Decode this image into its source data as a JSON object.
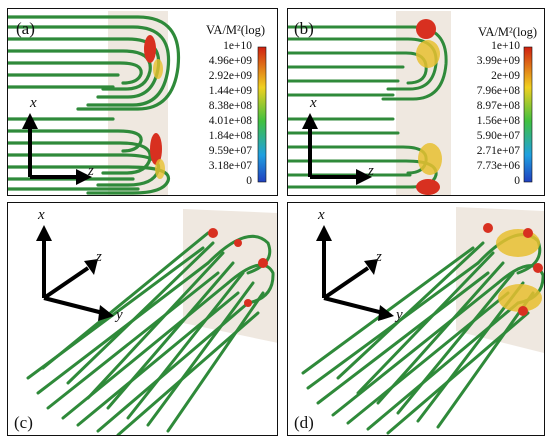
{
  "panels": {
    "a": {
      "label": "(a)"
    },
    "b": {
      "label": "(b)"
    },
    "c": {
      "label": "(c)"
    },
    "d": {
      "label": "(d)"
    }
  },
  "colorbar_a": {
    "title": "VA/M²(log)",
    "ticks": [
      "1e+10",
      "4.96e+09",
      "2.92e+09",
      "1.44e+09",
      "8.38e+08",
      "4.01e+08",
      "1.84e+08",
      "9.59e+07",
      "3.18e+07",
      "0"
    ]
  },
  "colorbar_b": {
    "title": "VA/M²(log)",
    "ticks": [
      "1e+10",
      "3.99e+09",
      "2e+09",
      "7.96e+08",
      "8.97e+08",
      "1.56e+08",
      "5.90e+07",
      "2.71e+07",
      "7.73e+06",
      "0"
    ]
  },
  "axes": {
    "x": "x",
    "y": "y",
    "z": "z"
  },
  "colors": {
    "streamline": "#2f8a3a",
    "hot": "#d83020",
    "warm": "#e8c030",
    "bg_box": "#efe8e0"
  }
}
